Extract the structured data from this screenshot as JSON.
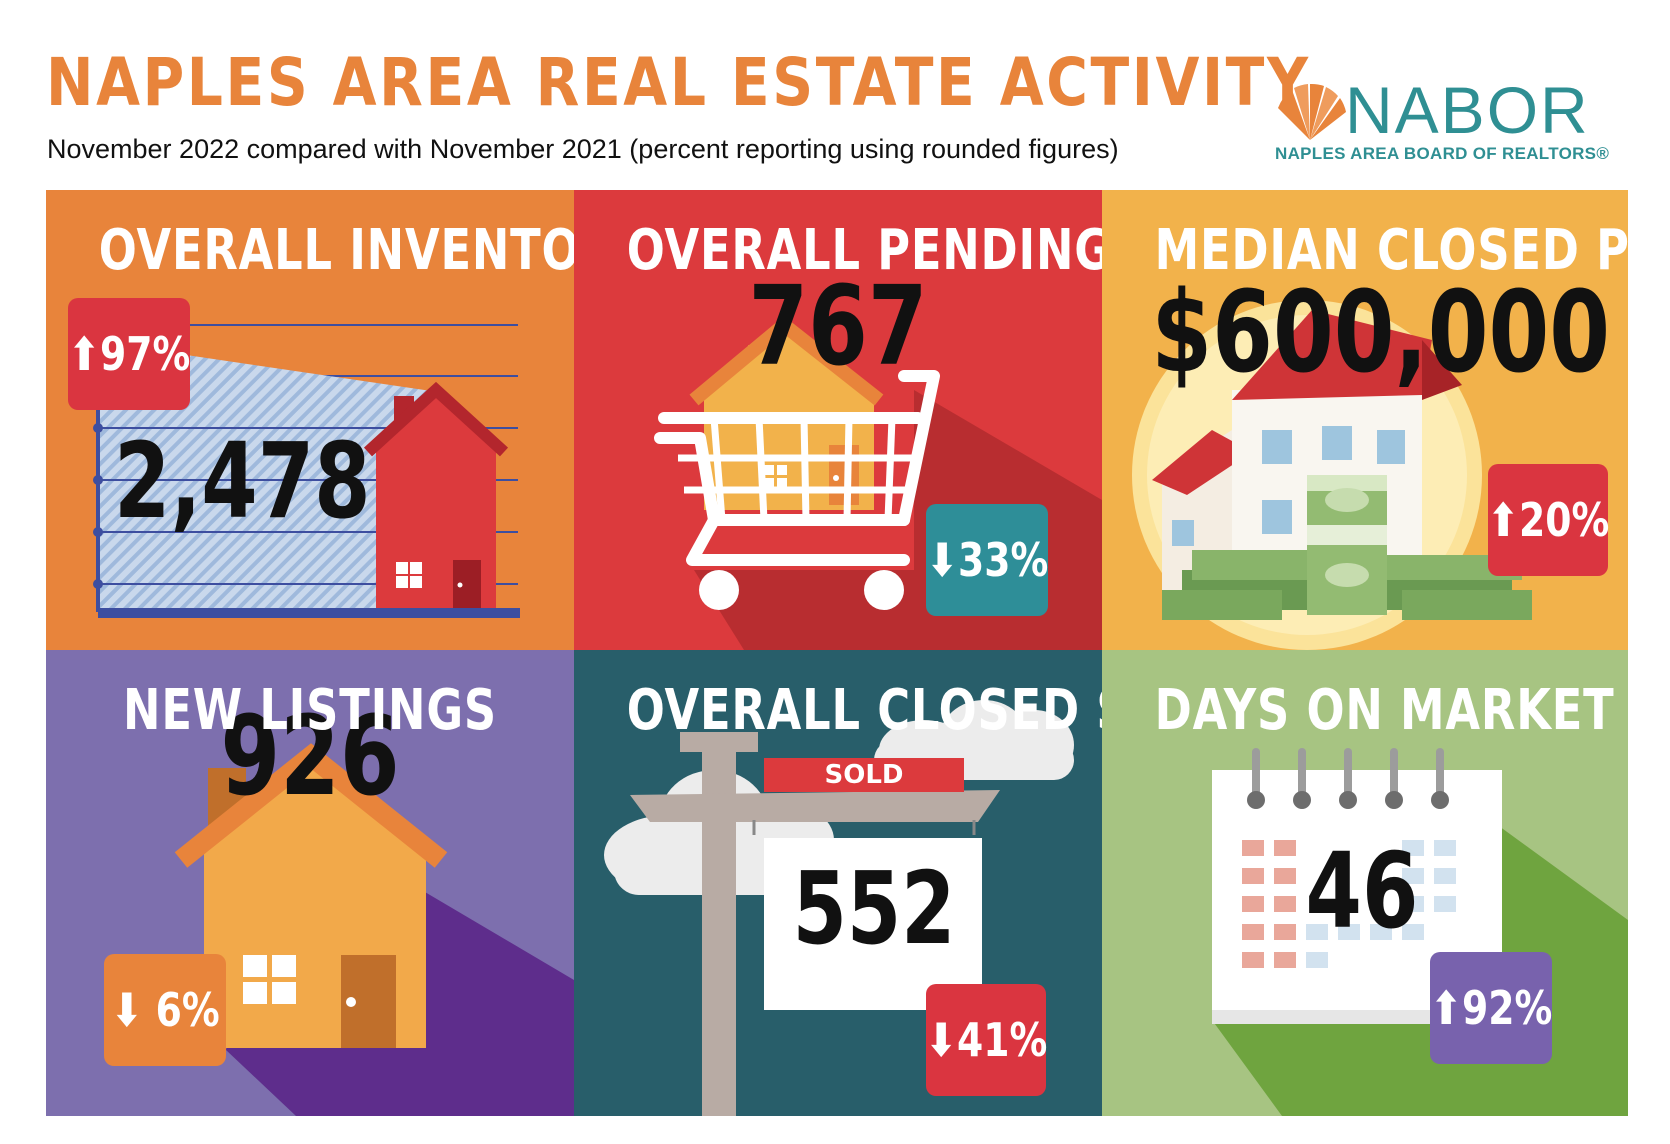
{
  "header": {
    "title": "NAPLES AREA REAL ESTATE ACTIVITY",
    "subtitle": "November 2022 compared with November 2021 (percent reporting using rounded figures)"
  },
  "logo": {
    "name": "NABOR",
    "tagline": "NAPLES AREA BOARD OF REALTORS®"
  },
  "colors": {
    "title": "#e8843b",
    "orange": "#e8843b",
    "red": "#dc3a3d",
    "yellow": "#f2b24b",
    "purple": "#7d6fae",
    "teal": "#285e6a",
    "green": "#a7c482",
    "badge_red": "#da3540",
    "badge_teal": "#2e8e98",
    "badge_orange": "#e8843b",
    "badge_purple": "#7862ad"
  },
  "panels": {
    "inventory": {
      "title": "OVERALL INVENTORY",
      "value": "2,478",
      "change": "97%",
      "direction": "up",
      "icon": "house-graph-icon"
    },
    "pending": {
      "title": "OVERALL PENDING SALES",
      "value": "767",
      "change": "33%",
      "direction": "down",
      "icon": "shopping-cart-icon"
    },
    "median": {
      "title": "MEDIAN CLOSED PRICE",
      "value": "$600,000",
      "change": "20%",
      "direction": "up",
      "icon": "house-money-icon"
    },
    "listings": {
      "title": "NEW LISTINGS",
      "value": "926",
      "change": "6%",
      "direction": "down",
      "icon": "house-icon"
    },
    "closed": {
      "title": "OVERALL CLOSED SALES",
      "value": "552",
      "change": "41%",
      "direction": "down",
      "icon": "sold-sign-icon",
      "sign_label": "SOLD"
    },
    "days": {
      "title": "DAYS ON MARKET",
      "value": "46",
      "change": "92%",
      "direction": "up",
      "icon": "calendar-icon"
    }
  }
}
